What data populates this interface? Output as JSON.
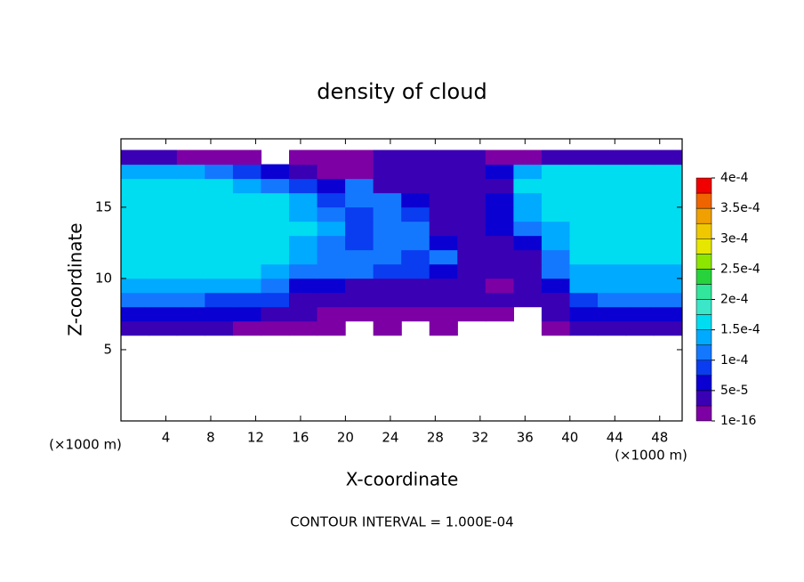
{
  "chart_data": {
    "type": "contour",
    "title": "density of cloud",
    "x_label": "X-coordinate",
    "y_label": "Z-coordinate",
    "x_unit_labels": [
      "(×1000 m)",
      "(×1000 m)"
    ],
    "footer": "CONTOUR INTERVAL = 1.000E-04",
    "xlim": [
      0,
      50
    ],
    "xticks": [
      4,
      8,
      12,
      16,
      20,
      24,
      28,
      32,
      36,
      40,
      44,
      48
    ],
    "ylim": [
      0,
      19.8
    ],
    "yticks": [
      5,
      10,
      15
    ],
    "colorbar_ticks": [
      {
        "value": 1e-16,
        "label": "1e-16"
      },
      {
        "value": 5e-05,
        "label": "5e-5"
      },
      {
        "value": 0.0001,
        "label": "1e-4"
      },
      {
        "value": 0.00015,
        "label": "1.5e-4"
      },
      {
        "value": 0.0002,
        "label": "2e-4"
      },
      {
        "value": 0.00025,
        "label": "2.5e-4"
      },
      {
        "value": 0.0003,
        "label": "3e-4"
      },
      {
        "value": 0.00035,
        "label": "3.5e-4"
      },
      {
        "value": 0.0004,
        "label": "4e-4"
      }
    ],
    "colors": [
      "#7d00a5",
      "#3a00b4",
      "#0a00d2",
      "#0a3cf0",
      "#1478ff",
      "#00aaff",
      "#00dcf0",
      "#3ce6c8",
      "#32e69b",
      "#28d23c",
      "#8ce600",
      "#e6e600",
      "#f0c800",
      "#f0a000",
      "#f06400",
      "#f00000",
      "#ff7f7f"
    ],
    "field": {
      "x": [
        1.25,
        3.75,
        6.25,
        8.75,
        11.25,
        13.75,
        16.25,
        18.75,
        21.25,
        23.75,
        26.25,
        28.75,
        31.25,
        33.75,
        36.25,
        38.75,
        41.25,
        43.75,
        46.25,
        48.75
      ],
      "z": [
        6.5,
        7.5,
        8.5,
        9.5,
        10.5,
        11.5,
        12.5,
        13.5,
        14.5,
        15.5,
        16.5,
        17.5,
        18.5
      ],
      "values": [
        [
          3e-05,
          3e-05,
          3e-05,
          3e-05,
          2e-05,
          2e-05,
          2e-05,
          1e-05,
          null,
          1e-05,
          null,
          1e-05,
          null,
          null,
          null,
          2e-05,
          3e-05,
          3e-05,
          3e-05,
          3e-05
        ],
        [
          7e-05,
          7e-05,
          7e-05,
          7e-05,
          6e-05,
          5e-05,
          4e-05,
          2e-05,
          2e-05,
          2e-05,
          2e-05,
          2e-05,
          2e-05,
          2e-05,
          null,
          4e-05,
          7e-05,
          7e-05,
          7e-05,
          7e-05
        ],
        [
          0.000105,
          0.000105,
          0.000105,
          0.0001,
          0.0001,
          9e-05,
          5e-05,
          3e-05,
          3e-05,
          3e-05,
          3e-05,
          3e-05,
          3e-05,
          3e-05,
          3e-05,
          3e-05,
          0.0001,
          0.000105,
          0.000105,
          0.000105
        ],
        [
          0.00014,
          0.00014,
          0.00014,
          0.00014,
          0.000135,
          0.00012,
          7e-05,
          6e-05,
          5e-05,
          4e-05,
          5e-05,
          4e-05,
          3e-05,
          2e-05,
          4e-05,
          6e-05,
          0.00013,
          0.000135,
          0.000135,
          0.000135
        ],
        [
          0.000155,
          0.000155,
          0.000155,
          0.000155,
          0.000155,
          0.00014,
          0.000115,
          0.000105,
          0.00011,
          9e-05,
          8e-05,
          6e-05,
          4e-05,
          3e-05,
          5e-05,
          0.00011,
          0.000145,
          0.000145,
          0.000145,
          0.000145
        ],
        [
          0.000165,
          0.000165,
          0.000165,
          0.000165,
          0.000165,
          0.00016,
          0.00013,
          0.000105,
          0.00011,
          0.00011,
          9e-05,
          0.000105,
          5e-05,
          3e-05,
          4e-05,
          0.00012,
          0.000155,
          0.000155,
          0.000155,
          0.000155
        ],
        [
          0.00017,
          0.00017,
          0.00017,
          0.00017,
          0.00017,
          0.00017,
          0.00015,
          0.00011,
          9e-05,
          0.000105,
          0.000105,
          6e-05,
          5e-05,
          4e-05,
          6e-05,
          0.00013,
          0.00016,
          0.00016,
          0.00016,
          0.00016
        ],
        [
          0.00017,
          0.00017,
          0.00017,
          0.00017,
          0.00017,
          0.00017,
          0.00016,
          0.00013,
          8e-05,
          0.00011,
          0.000105,
          4e-05,
          5e-05,
          7e-05,
          0.00012,
          0.00015,
          0.000165,
          0.000165,
          0.000165,
          0.000165
        ],
        [
          0.00017,
          0.00017,
          0.00017,
          0.00017,
          0.00017,
          0.000165,
          0.00015,
          0.00012,
          8e-05,
          0.00011,
          8e-05,
          4e-05,
          5e-05,
          7e-05,
          0.00014,
          0.00016,
          0.000165,
          0.000165,
          0.000165,
          0.000165
        ],
        [
          0.000165,
          0.000165,
          0.000165,
          0.000165,
          0.00016,
          0.000155,
          0.00013,
          9e-05,
          0.00011,
          0.000105,
          7e-05,
          5e-05,
          4e-05,
          6e-05,
          0.00015,
          0.000165,
          0.000165,
          0.000165,
          0.000165,
          0.000165
        ],
        [
          0.00016,
          0.00016,
          0.00016,
          0.00016,
          0.00015,
          0.00012,
          0.0001,
          6e-05,
          0.00012,
          4e-05,
          4e-05,
          4e-05,
          4e-05,
          4e-05,
          0.000155,
          0.00016,
          0.00016,
          0.00016,
          0.00016,
          0.00016
        ],
        [
          0.00015,
          0.000145,
          0.00014,
          0.00012,
          9e-05,
          6e-05,
          3e-05,
          2e-05,
          2e-05,
          4e-05,
          4e-05,
          4e-05,
          4e-05,
          6e-05,
          0.00015,
          0.000155,
          0.000155,
          0.000155,
          0.000155,
          0.000155
        ],
        [
          3e-05,
          3e-05,
          2e-05,
          1e-05,
          1e-05,
          null,
          1e-05,
          1e-05,
          2e-05,
          3e-05,
          3e-05,
          3e-05,
          3e-05,
          2e-05,
          2e-05,
          3e-05,
          3e-05,
          4e-05,
          4e-05,
          4e-05
        ]
      ]
    }
  }
}
